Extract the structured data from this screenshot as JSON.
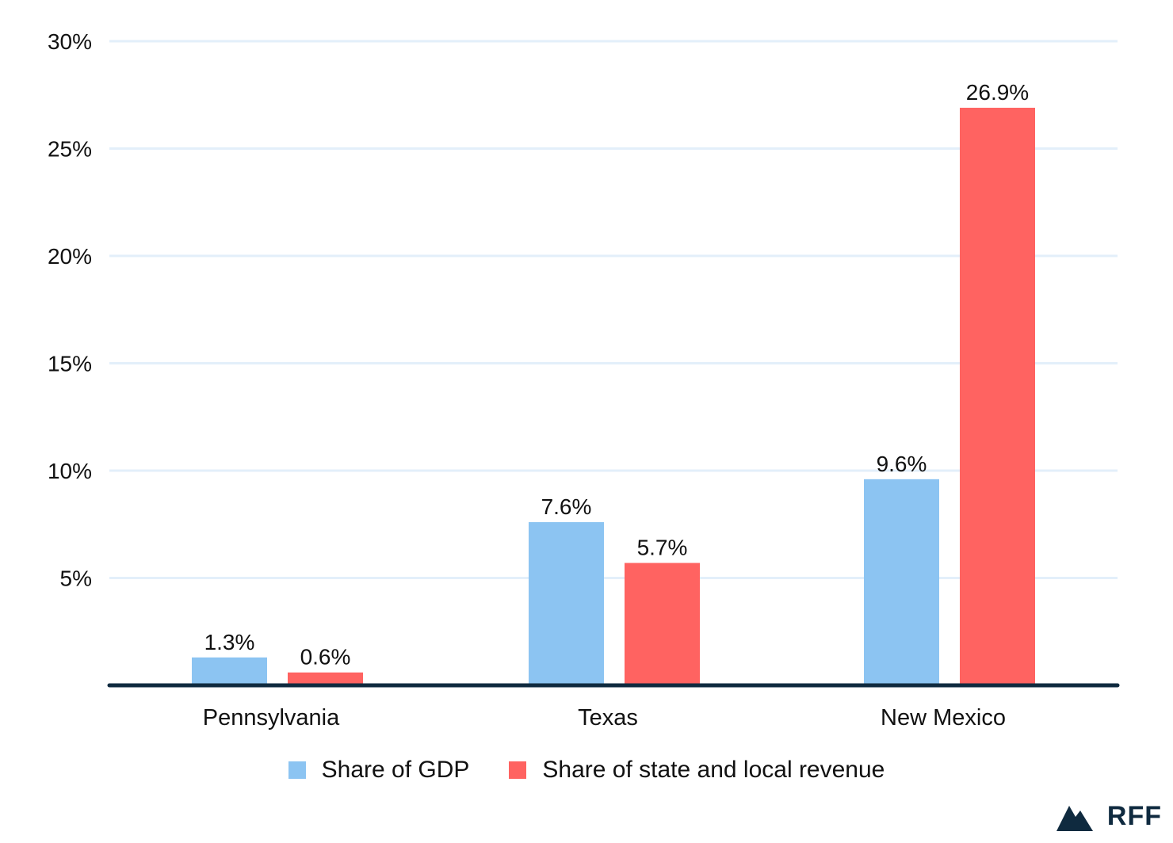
{
  "chart_data": {
    "type": "bar",
    "title": "",
    "xlabel": "",
    "ylabel": "",
    "categories": [
      "Pennsylvania",
      "Texas",
      "New Mexico"
    ],
    "series": [
      {
        "name": "Share of GDP",
        "color": "#8cc4f2",
        "values": [
          1.3,
          7.6,
          9.6
        ],
        "labels": [
          "1.3%",
          "7.6%",
          "9.6%"
        ]
      },
      {
        "name": "Share of state and local revenue",
        "color": "#ff6361",
        "values": [
          0.6,
          5.7,
          26.9
        ],
        "labels": [
          "0.6%",
          "5.7%",
          "26.9%"
        ]
      }
    ],
    "ylim": [
      0,
      30
    ],
    "yticks": [
      5,
      10,
      15,
      20,
      25,
      30
    ],
    "ytick_labels": [
      "5%",
      "10%",
      "15%",
      "20%",
      "25%",
      "30%"
    ],
    "grid": true,
    "legend_position": "bottom-center"
  },
  "logo": {
    "text": "RFF",
    "icon": "mountain-icon",
    "color": "#0f2a3f"
  },
  "colors": {
    "grid": "#e3effa",
    "baseline": "#0f2a3f"
  }
}
